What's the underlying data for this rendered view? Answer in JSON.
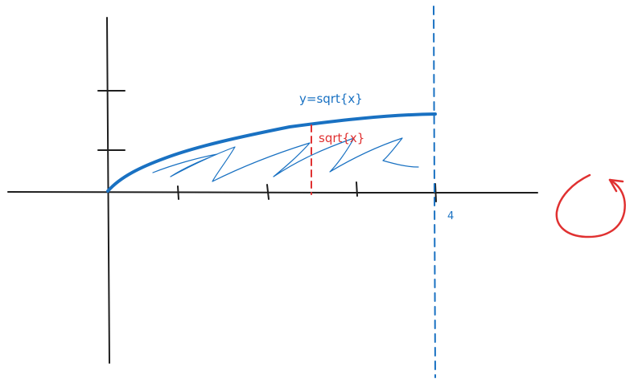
{
  "diagram": {
    "curve_label": "y=sqrt{x}",
    "height_label": "sqrt{x}",
    "x_tick_label": "4",
    "colors": {
      "axes": "#1e1e1e",
      "curve": "#1971c2",
      "boundary": "#1971c2",
      "height_marker": "#e03131",
      "rotation_arrow": "#e03131"
    },
    "icons": {
      "rotation": "rotation-arrow-icon"
    }
  }
}
